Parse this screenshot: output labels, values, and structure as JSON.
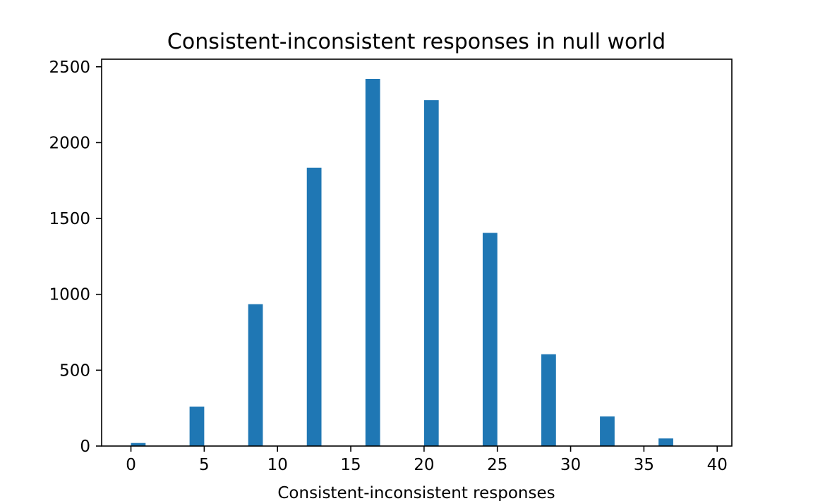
{
  "chart_data": {
    "type": "bar",
    "title": "Consistent-inconsistent responses in null world",
    "xlabel": "Consistent-inconsistent responses",
    "ylabel": "",
    "xlim": [
      -2,
      41
    ],
    "ylim": [
      0,
      2550
    ],
    "x_ticks": [
      0,
      5,
      10,
      15,
      20,
      25,
      30,
      35,
      40
    ],
    "y_ticks": [
      0,
      500,
      1000,
      1500,
      2000,
      2500
    ],
    "bin_width": 1,
    "bars": [
      {
        "x": 0,
        "value": 20
      },
      {
        "x": 4,
        "value": 260
      },
      {
        "x": 8,
        "value": 935
      },
      {
        "x": 12,
        "value": 1835
      },
      {
        "x": 16,
        "value": 2420
      },
      {
        "x": 20,
        "value": 2280
      },
      {
        "x": 24,
        "value": 1405
      },
      {
        "x": 28,
        "value": 605
      },
      {
        "x": 32,
        "value": 195
      },
      {
        "x": 36,
        "value": 50
      }
    ],
    "bar_color": "#1f77b4",
    "grid": false,
    "legend": "none"
  }
}
